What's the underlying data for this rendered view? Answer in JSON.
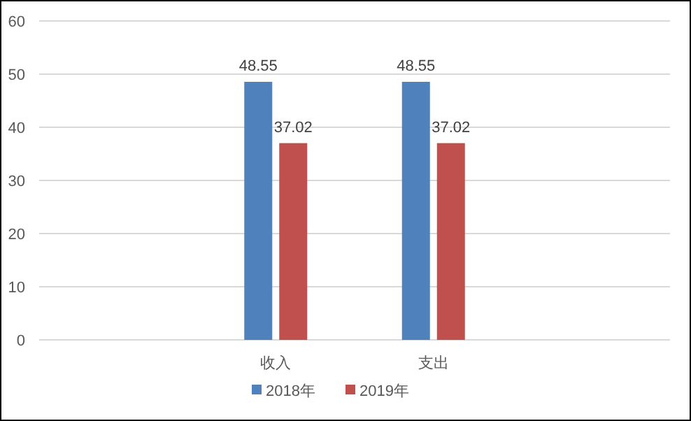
{
  "chart_data": {
    "type": "bar",
    "categories": [
      null,
      "收入",
      "支出",
      null
    ],
    "series": [
      {
        "name": "2018年",
        "color": "#4f81bd",
        "values": [
          null,
          48.55,
          48.55,
          null
        ]
      },
      {
        "name": "2019年",
        "color": "#c0504d",
        "values": [
          null,
          37.02,
          37.02,
          null
        ]
      }
    ],
    "ylim": [
      0,
      60
    ],
    "yticks": [
      0,
      10,
      20,
      30,
      40,
      50,
      60
    ],
    "grid": "y",
    "legend": "bottom",
    "data_labels": true
  }
}
